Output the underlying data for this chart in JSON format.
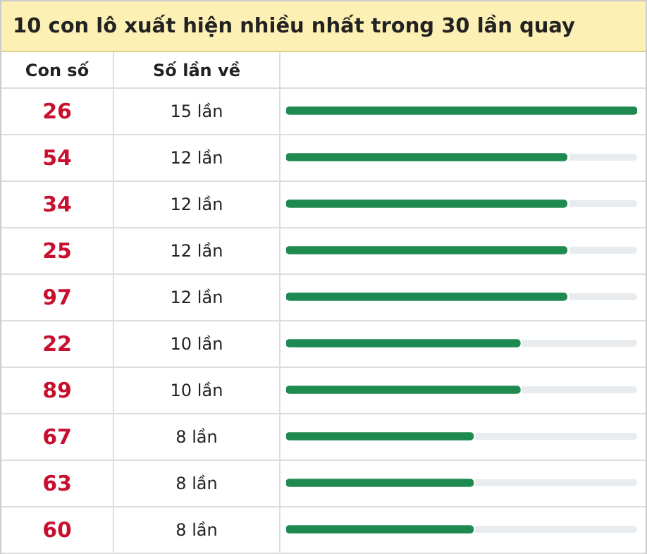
{
  "chart_data": {
    "type": "bar",
    "orientation": "horizontal",
    "title": "10 con lô xuất hiện nhiều nhất trong 30 lần quay",
    "ylabel": "Con số",
    "xlabel": "Số lần về",
    "categories": [
      "26",
      "54",
      "34",
      "25",
      "97",
      "22",
      "89",
      "67",
      "63",
      "60"
    ],
    "values": [
      15,
      12,
      12,
      12,
      12,
      10,
      10,
      8,
      8,
      8
    ],
    "value_labels": [
      "15 lần",
      "12 lần",
      "12 lần",
      "12 lần",
      "12 lần",
      "10 lần",
      "10 lần",
      "8 lần",
      "8 lần",
      "8 lần"
    ],
    "color": "#1e8a50",
    "xlim": [
      0,
      15
    ],
    "legend": false
  }
}
